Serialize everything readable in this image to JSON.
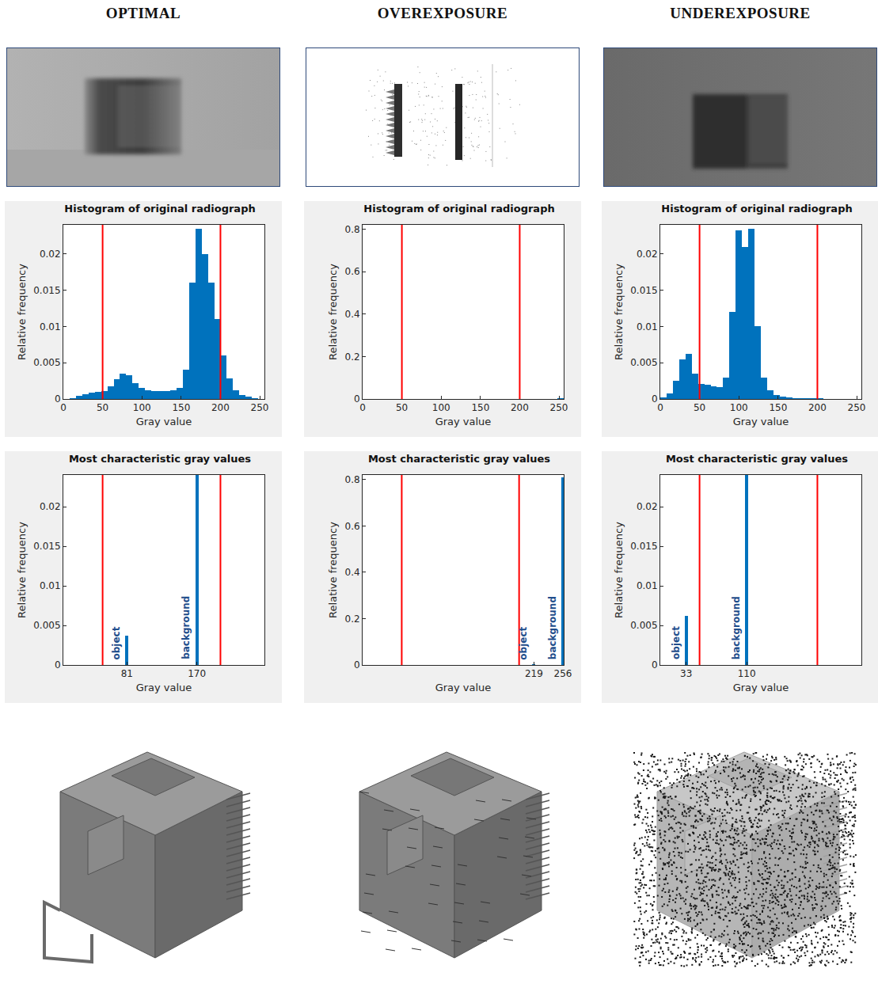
{
  "column_titles": [
    "OPTIMAL",
    "OVEREXPOSURE",
    "UNDEREXPOSURE"
  ],
  "chart_data": [
    {
      "type": "histogram",
      "title": "Histogram of original radiograph",
      "x_label": "Gray value",
      "y_label": "Relative frequency",
      "bins": [
        0,
        8,
        16,
        24,
        32,
        40,
        48,
        56,
        64,
        72,
        80,
        88,
        96,
        104,
        112,
        120,
        128,
        136,
        144,
        152,
        160,
        168,
        176,
        184,
        192,
        200,
        208,
        216,
        224,
        232,
        240,
        248,
        256
      ],
      "values": [
        0,
        0.0001,
        0.0004,
        0.0007,
        0.0009,
        0.001,
        0.0011,
        0.0018,
        0.0027,
        0.0035,
        0.0033,
        0.0022,
        0.0015,
        0.0012,
        0.0011,
        0.0011,
        0.0011,
        0.0012,
        0.0015,
        0.004,
        0.016,
        0.0235,
        0.02,
        0.016,
        0.011,
        0.006,
        0.0028,
        0.0012,
        0.0006,
        0.0003,
        0.0001,
        0
      ],
      "color": "#0072bd",
      "xlim": [
        0,
        256
      ],
      "xticks": [
        0,
        50,
        100,
        150,
        200,
        250
      ],
      "ylim": [
        0,
        0.024
      ],
      "yticks": [
        0,
        0.005,
        0.01,
        0.015,
        0.02
      ],
      "thresholds": [
        50,
        200
      ],
      "threshold_color": "#ff0000",
      "grid": false
    },
    {
      "type": "histogram",
      "title": "Histogram of original radiograph",
      "x_label": "Gray value",
      "y_label": "Relative frequency",
      "bins": [
        0,
        8,
        16,
        24,
        32,
        40,
        48,
        56,
        64,
        72,
        80,
        88,
        96,
        104,
        112,
        120,
        128,
        136,
        144,
        152,
        160,
        168,
        176,
        184,
        192,
        200,
        208,
        216,
        224,
        232,
        240,
        248,
        256
      ],
      "values": [
        0,
        0,
        0,
        0,
        0,
        0,
        0,
        0,
        0,
        0,
        0,
        0,
        0,
        0,
        0,
        0,
        0,
        0,
        0,
        0,
        0,
        0,
        0,
        0,
        0,
        0,
        0,
        0.0003,
        0,
        0,
        0.0008,
        0.004
      ],
      "color": "#0072bd",
      "xlim": [
        0,
        256
      ],
      "xticks": [
        0,
        50,
        100,
        150,
        200,
        250
      ],
      "ylim": [
        0,
        0.82
      ],
      "yticks": [
        0,
        0.2,
        0.4,
        0.6,
        0.8
      ],
      "thresholds": [
        50,
        200
      ],
      "threshold_color": "#ff0000",
      "grid": false
    },
    {
      "type": "histogram",
      "title": "Histogram of original radiograph",
      "x_label": "Gray value",
      "y_label": "Relative frequency",
      "bins": [
        0,
        8,
        16,
        24,
        32,
        40,
        48,
        56,
        64,
        72,
        80,
        88,
        96,
        104,
        112,
        120,
        128,
        136,
        144,
        152,
        160,
        168,
        176,
        184,
        192,
        200,
        208,
        216,
        224,
        232,
        240,
        248,
        256
      ],
      "values": [
        0.0002,
        0.0008,
        0.0025,
        0.0055,
        0.0062,
        0.0035,
        0.0021,
        0.002,
        0.0018,
        0.0016,
        0.003,
        0.012,
        0.0232,
        0.021,
        0.0235,
        0.01,
        0.003,
        0.0012,
        0.0006,
        0.0003,
        0.0002,
        0.0001,
        0.0001,
        0.0001,
        0.0001,
        0.0001,
        0,
        0,
        0,
        0,
        0,
        0
      ],
      "color": "#0072bd",
      "xlim": [
        0,
        256
      ],
      "xticks": [
        0,
        50,
        100,
        150,
        200,
        250
      ],
      "ylim": [
        0,
        0.024
      ],
      "yticks": [
        0,
        0.005,
        0.01,
        0.015,
        0.02
      ],
      "thresholds": [
        50,
        200
      ],
      "threshold_color": "#ff0000",
      "grid": false
    },
    {
      "type": "bar",
      "title": "Most characteristic gray values",
      "x_label": "Gray value",
      "y_label": "Relative frequency",
      "x": [
        81,
        170
      ],
      "values": [
        0.0037,
        0.024
      ],
      "bar_labels": [
        "object",
        "background"
      ],
      "color": "#0072bd",
      "xlim": [
        0,
        256
      ],
      "xticks": [
        81,
        170
      ],
      "ylim": [
        0,
        0.024
      ],
      "yticks": [
        0,
        0.005,
        0.01,
        0.015,
        0.02
      ],
      "thresholds": [
        50,
        200
      ],
      "threshold_color": "#ff0000",
      "grid": false
    },
    {
      "type": "bar",
      "title": "Most characteristic gray values",
      "x_label": "Gray value",
      "y_label": "Relative frequency",
      "x": [
        219,
        256
      ],
      "values": [
        0.004,
        0.81
      ],
      "bar_labels": [
        "object",
        "background"
      ],
      "color": "#0072bd",
      "xlim": [
        0,
        257
      ],
      "xticks": [
        219,
        256
      ],
      "ylim": [
        0,
        0.82
      ],
      "yticks": [
        0,
        0.2,
        0.4,
        0.6,
        0.8
      ],
      "thresholds": [
        50,
        200
      ],
      "threshold_color": "#ff0000",
      "grid": false
    },
    {
      "type": "bar",
      "title": "Most characteristic gray values",
      "x_label": "Gray value",
      "y_label": "Relative frequency",
      "x": [
        33,
        110
      ],
      "values": [
        0.0062,
        0.024
      ],
      "bar_labels": [
        "object",
        "background"
      ],
      "color": "#0072bd",
      "xlim": [
        0,
        256
      ],
      "xticks": [
        33,
        110
      ],
      "ylim": [
        0,
        0.024
      ],
      "yticks": [
        0,
        0.005,
        0.01,
        0.015,
        0.02
      ],
      "thresholds": [
        50,
        200
      ],
      "threshold_color": "#ff0000",
      "grid": false
    }
  ]
}
